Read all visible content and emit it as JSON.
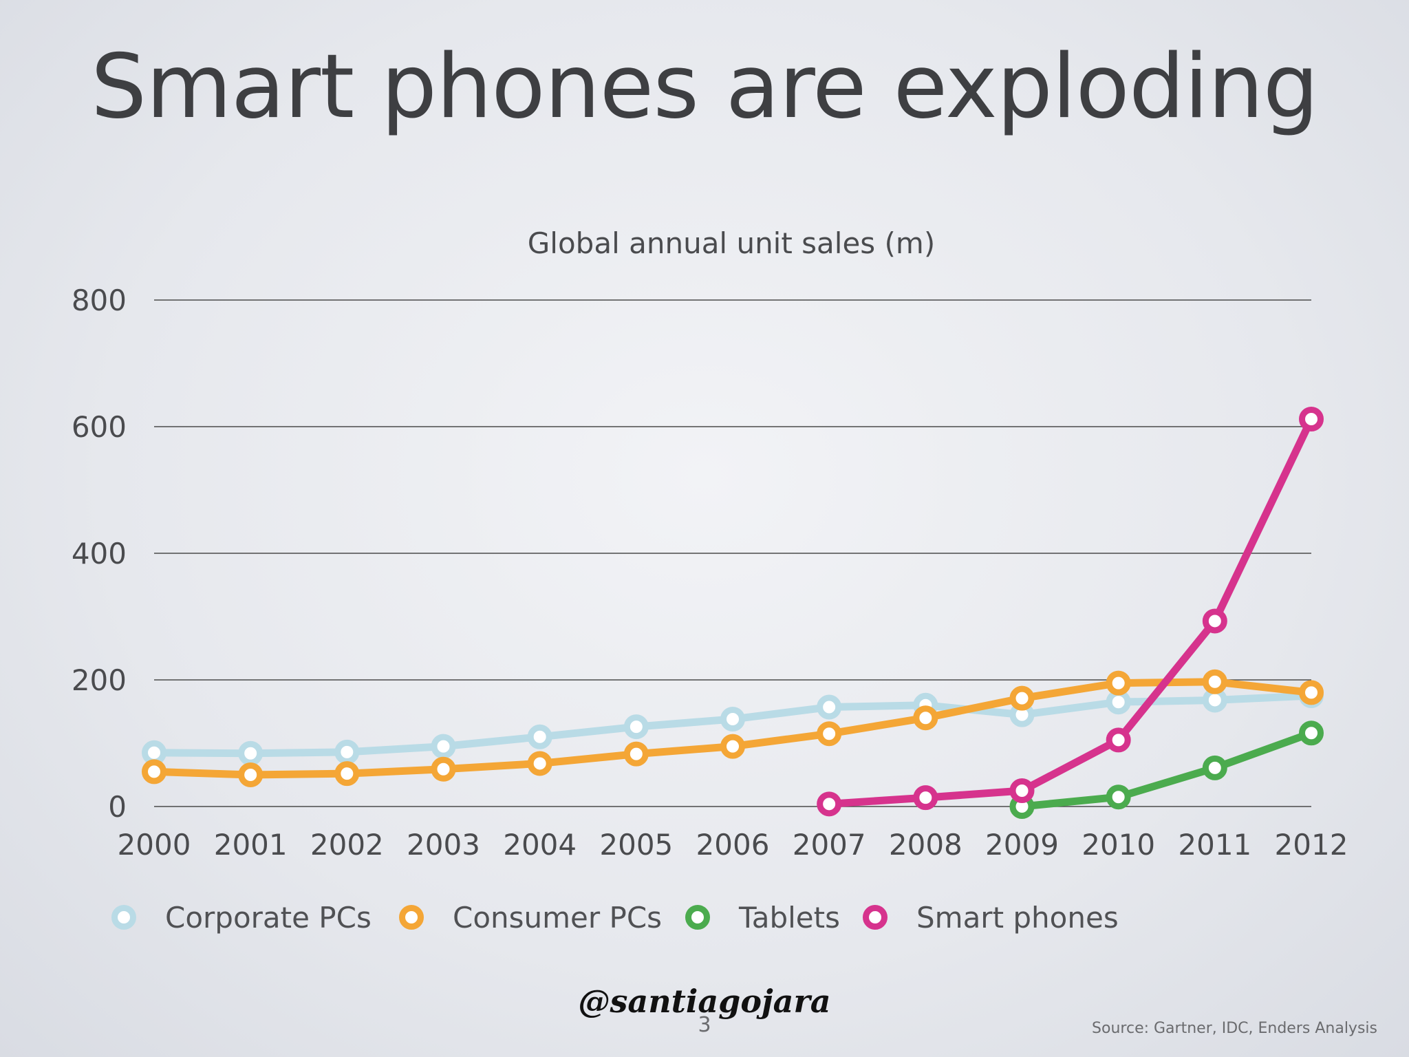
{
  "slide": {
    "title": "Smart phones are exploding",
    "page_number": "3",
    "watermark": "@santiagojara",
    "source": "Source: Gartner, IDC, Enders Analysis"
  },
  "colors": {
    "corporate_pcs": "#b9dbe6",
    "consumer_pcs": "#f4a636",
    "tablets": "#4bab4e",
    "smart_phones": "#d6338d",
    "grid": "#4a4a4a"
  },
  "chart_data": {
    "type": "line",
    "title": "Global annual unit sales (m)",
    "xlabel": "",
    "ylabel": "",
    "ylim": [
      0,
      800
    ],
    "yticks": [
      "0",
      "200",
      "400",
      "600",
      "800"
    ],
    "categories": [
      "2000",
      "2001",
      "2002",
      "2003",
      "2004",
      "2005",
      "2006",
      "2007",
      "2008",
      "2009",
      "2010",
      "2011",
      "2012"
    ],
    "grid": true,
    "legend_position": "bottom-left",
    "series": [
      {
        "name": "Corporate PCs",
        "key": "corporate_pcs",
        "values": [
          85,
          84,
          86,
          95,
          110,
          126,
          138,
          157,
          160,
          145,
          165,
          168,
          175
        ]
      },
      {
        "name": "Consumer PCs",
        "key": "consumer_pcs",
        "values": [
          55,
          50,
          52,
          59,
          68,
          83,
          95,
          115,
          140,
          171,
          195,
          197,
          180
        ]
      },
      {
        "name": "Tablets",
        "key": "tablets",
        "values": [
          null,
          null,
          null,
          null,
          null,
          null,
          null,
          null,
          null,
          0,
          15,
          61,
          116
        ]
      },
      {
        "name": "Smart phones",
        "key": "smart_phones",
        "values": [
          null,
          null,
          null,
          null,
          null,
          null,
          null,
          4,
          14,
          25,
          105,
          293,
          612
        ]
      }
    ]
  }
}
